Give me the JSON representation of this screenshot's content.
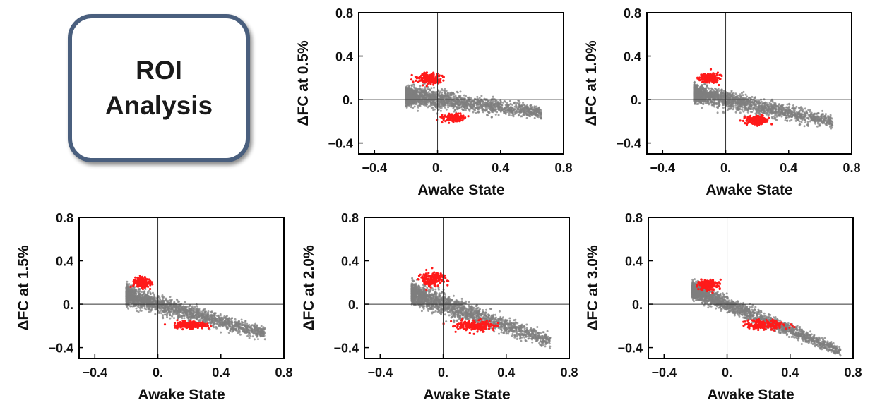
{
  "box": {
    "line1": "ROI",
    "line2": "Analysis"
  },
  "colors": {
    "background_points": "#7f7f7f",
    "highlight_points": "#ff1a1a",
    "frame": "#000000",
    "box_border": "#4a5f7e"
  },
  "chart_data": [
    {
      "type": "scatter",
      "xlabel": "Awake State",
      "ylabel": "ΔFC at 0.5%",
      "xlim": [
        -0.5,
        0.8
      ],
      "ylim": [
        -0.5,
        0.8
      ],
      "xticks": [
        "−0.4",
        "0.",
        "0.4",
        "0.8"
      ],
      "yticks": [
        "0.8",
        "0.4",
        "0.",
        "−0.4"
      ],
      "slope": -0.18,
      "spread": 0.07,
      "x_range": [
        -0.2,
        0.66
      ],
      "clusters": [
        {
          "x": -0.05,
          "y": 0.19,
          "sx": 0.07,
          "sy": 0.04
        },
        {
          "x": 0.1,
          "y": -0.17,
          "sx": 0.06,
          "sy": 0.03
        }
      ]
    },
    {
      "type": "scatter",
      "xlabel": "Awake State",
      "ylabel": "ΔFC at 1.0%",
      "xlim": [
        -0.5,
        0.8
      ],
      "ylim": [
        -0.5,
        0.8
      ],
      "xticks": [
        "−0.4",
        "0.",
        "0.4",
        "0.8"
      ],
      "yticks": [
        "0.8",
        "0.4",
        "0.",
        "−0.4"
      ],
      "slope": -0.3,
      "spread": 0.07,
      "x_range": [
        -0.2,
        0.68
      ],
      "clusters": [
        {
          "x": -0.1,
          "y": 0.2,
          "sx": 0.05,
          "sy": 0.04
        },
        {
          "x": 0.2,
          "y": -0.19,
          "sx": 0.06,
          "sy": 0.03
        }
      ]
    },
    {
      "type": "scatter",
      "xlabel": "Awake State",
      "ylabel": "ΔFC at 1.5%",
      "xlim": [
        -0.5,
        0.8
      ],
      "ylim": [
        -0.5,
        0.8
      ],
      "xticks": [
        "−0.4",
        "0.",
        "0.4",
        "0.8"
      ],
      "yticks": [
        "0.8",
        "0.4",
        "0.",
        "−0.4"
      ],
      "slope": -0.4,
      "spread": 0.07,
      "x_range": [
        -0.2,
        0.68
      ],
      "clusters": [
        {
          "x": -0.1,
          "y": 0.2,
          "sx": 0.05,
          "sy": 0.04
        },
        {
          "x": 0.2,
          "y": -0.19,
          "sx": 0.09,
          "sy": 0.03
        }
      ]
    },
    {
      "type": "scatter",
      "xlabel": "Awake State",
      "ylabel": "ΔFC at 2.0%",
      "xlim": [
        -0.5,
        0.8
      ],
      "ylim": [
        -0.5,
        0.8
      ],
      "xticks": [
        "−0.4",
        "0.",
        "0.4",
        "0.8"
      ],
      "yticks": [
        "0.8",
        "0.4",
        "0.",
        "−0.4"
      ],
      "slope": -0.5,
      "spread": 0.08,
      "x_range": [
        -0.2,
        0.68
      ],
      "clusters": [
        {
          "x": -0.07,
          "y": 0.23,
          "sx": 0.07,
          "sy": 0.06
        },
        {
          "x": 0.2,
          "y": -0.2,
          "sx": 0.1,
          "sy": 0.04
        }
      ]
    },
    {
      "type": "scatter",
      "xlabel": "Awake State",
      "ylabel": "ΔFC at 3.0%",
      "xlim": [
        -0.5,
        0.8
      ],
      "ylim": [
        -0.5,
        0.8
      ],
      "xticks": [
        "−0.4",
        "0.",
        "0.4",
        "0.8"
      ],
      "yticks": [
        "0.8",
        "0.4",
        "0.",
        "−0.4"
      ],
      "slope": -0.6,
      "spread": 0.06,
      "x_range": [
        -0.22,
        0.72
      ],
      "clusters": [
        {
          "x": -0.12,
          "y": 0.18,
          "sx": 0.05,
          "sy": 0.04
        },
        {
          "x": 0.25,
          "y": -0.19,
          "sx": 0.12,
          "sy": 0.04
        }
      ]
    }
  ]
}
